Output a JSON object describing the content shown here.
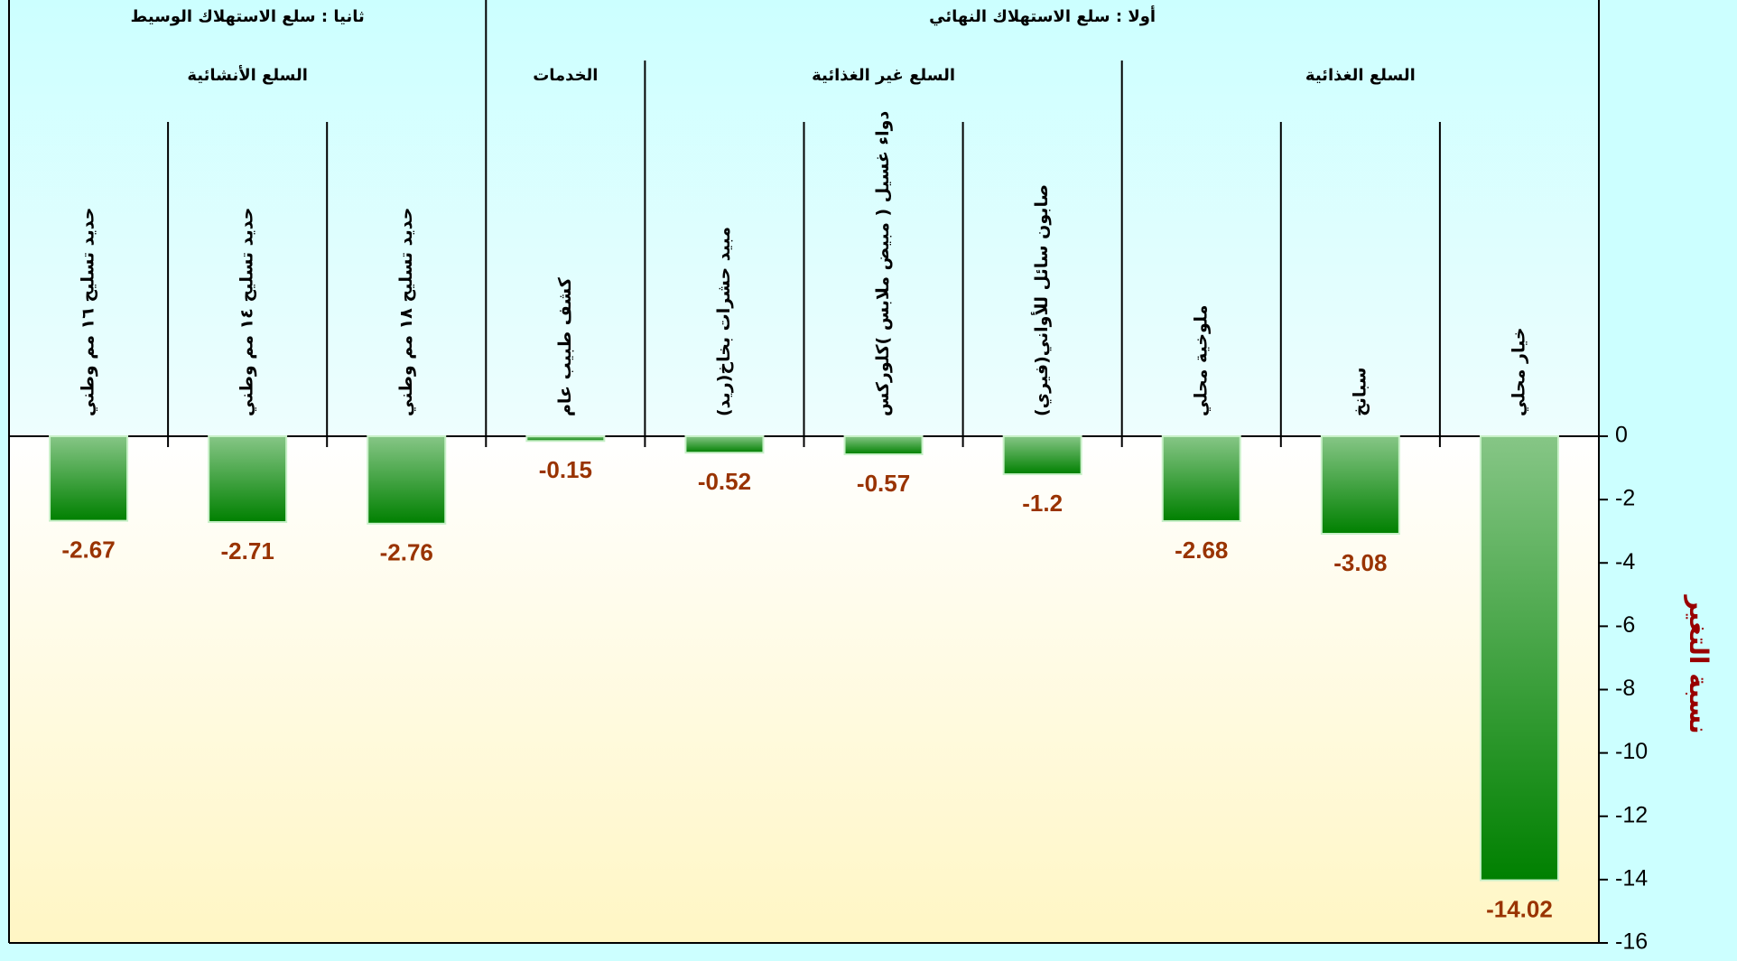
{
  "chart_data": {
    "type": "bar",
    "y_axis_label": "نسبة التغير",
    "ylim": [
      -16,
      0
    ],
    "yticks": [
      0,
      -2,
      -4,
      -6,
      -8,
      -10,
      -12,
      -14,
      -16
    ],
    "groups": [
      {
        "name": "أولا : سلع الاستهلاك النهائي",
        "subgroups": [
          {
            "name": "السلع الغذائية",
            "categories": [
              "خيار محلي",
              "سبانخ",
              "ملوخية محلي"
            ],
            "values": [
              -14.02,
              -3.08,
              -2.68
            ]
          },
          {
            "name": "السلع غير الغذائية",
            "categories": [
              "صابون سائل للأواني(فيري)",
              "دواء غسيل ( مبيض ملابس )كلوركس",
              "مبيد حشرات بخاخ(ريد)"
            ],
            "values": [
              -1.2,
              -0.57,
              -0.52
            ]
          },
          {
            "name": "الخدمات",
            "categories": [
              "كشف طبيب عام"
            ],
            "values": [
              -0.15
            ]
          }
        ]
      },
      {
        "name": "ثانيا : سلع الاستهلاك الوسيط",
        "subgroups": [
          {
            "name": "السلع الأنشائية",
            "categories": [
              "حديد تسليح ١٨ مم وطني",
              "حديد تسليح ١٤ مم وطني",
              "حديد تسليح ١٦ مم وطني"
            ],
            "values": [
              -2.76,
              -2.71,
              -2.67
            ]
          }
        ]
      }
    ]
  }
}
